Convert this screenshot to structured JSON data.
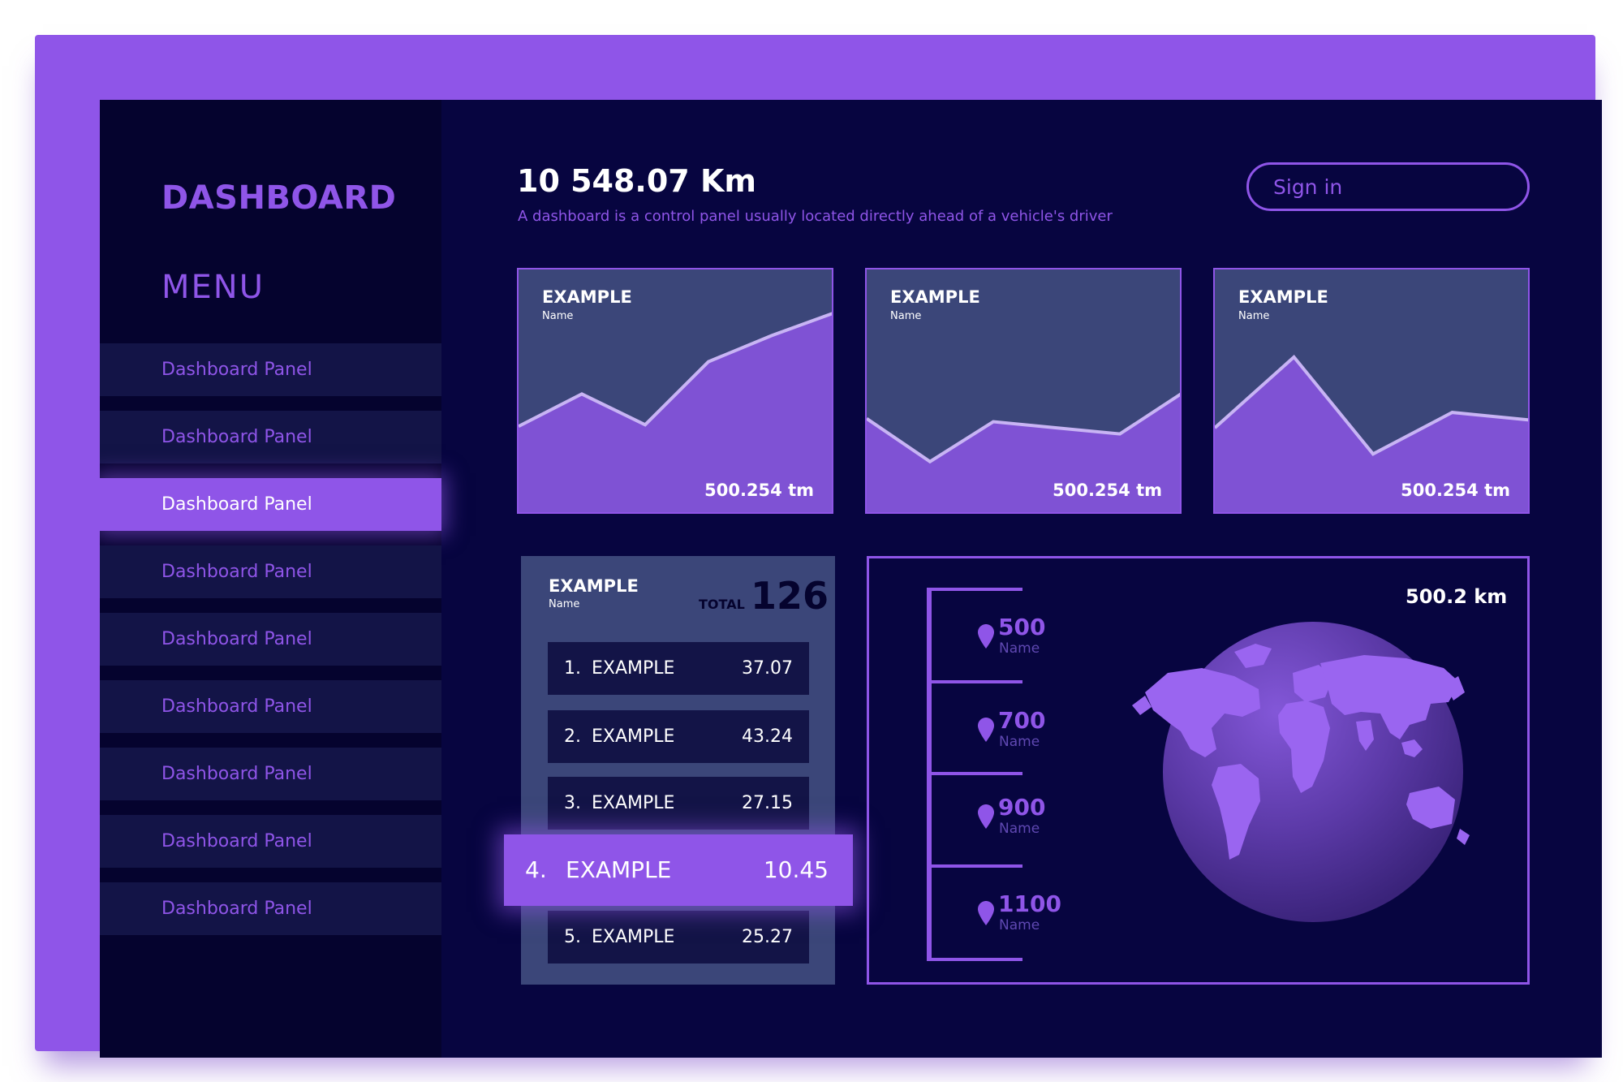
{
  "sidebar": {
    "title": "DASHBOARD",
    "menu_heading": "MENU",
    "items": [
      {
        "label": "Dashboard Panel",
        "active": false
      },
      {
        "label": "Dashboard Panel",
        "active": false
      },
      {
        "label": "Dashboard Panel",
        "active": true
      },
      {
        "label": "Dashboard Panel",
        "active": false
      },
      {
        "label": "Dashboard Panel",
        "active": false
      },
      {
        "label": "Dashboard Panel",
        "active": false
      },
      {
        "label": "Dashboard Panel",
        "active": false
      },
      {
        "label": "Dashboard Panel",
        "active": false
      },
      {
        "label": "Dashboard Panel",
        "active": false
      }
    ]
  },
  "header": {
    "distance": "10 548.07 Km",
    "subtitle": "A dashboard is a control panel usually located directly ahead of a vehicle's driver",
    "signin_label": "Sign in"
  },
  "cards": [
    {
      "title": "EXAMPLE",
      "subtitle": "Name",
      "value": "500.254 tm"
    },
    {
      "title": "EXAMPLE",
      "subtitle": "Name",
      "value": "500.254 tm"
    },
    {
      "title": "EXAMPLE",
      "subtitle": "Name",
      "value": "500.254 tm"
    }
  ],
  "chart_data": [
    {
      "type": "area",
      "values": [
        58,
        79,
        59,
        100,
        117,
        132
      ]
    },
    {
      "type": "area",
      "values": [
        63,
        35,
        61,
        57,
        53,
        80
      ]
    },
    {
      "type": "area",
      "values": [
        57,
        103,
        40,
        67,
        62
      ]
    }
  ],
  "ranking": {
    "title": "EXAMPLE",
    "subtitle": "Name",
    "total_label": "TOTAL",
    "total_value": "126",
    "rows": [
      {
        "rank": "1.",
        "label": "EXAMPLE",
        "value": "37.07",
        "active": false
      },
      {
        "rank": "2.",
        "label": "EXAMPLE",
        "value": "43.24",
        "active": false
      },
      {
        "rank": "3.",
        "label": "EXAMPLE",
        "value": "27.15",
        "active": false
      },
      {
        "rank": "4.",
        "label": "EXAMPLE",
        "value": "10.45",
        "active": true
      },
      {
        "rank": "5.",
        "label": "EXAMPLE",
        "value": "25.27",
        "active": false
      }
    ]
  },
  "map": {
    "total": "500.2 km",
    "locations": [
      {
        "value": "500",
        "name": "Name"
      },
      {
        "value": "700",
        "name": "Name"
      },
      {
        "value": "900",
        "name": "Name"
      },
      {
        "value": "1100",
        "name": "Name"
      }
    ]
  },
  "colors": {
    "accent": "#8f55e8",
    "background": "#070540",
    "sidebar": "#05032e",
    "panel": "#3b4679",
    "row": "#131447",
    "text": "#ffffff"
  },
  "icons": [
    "location-pin-icon",
    "globe-icon"
  ]
}
